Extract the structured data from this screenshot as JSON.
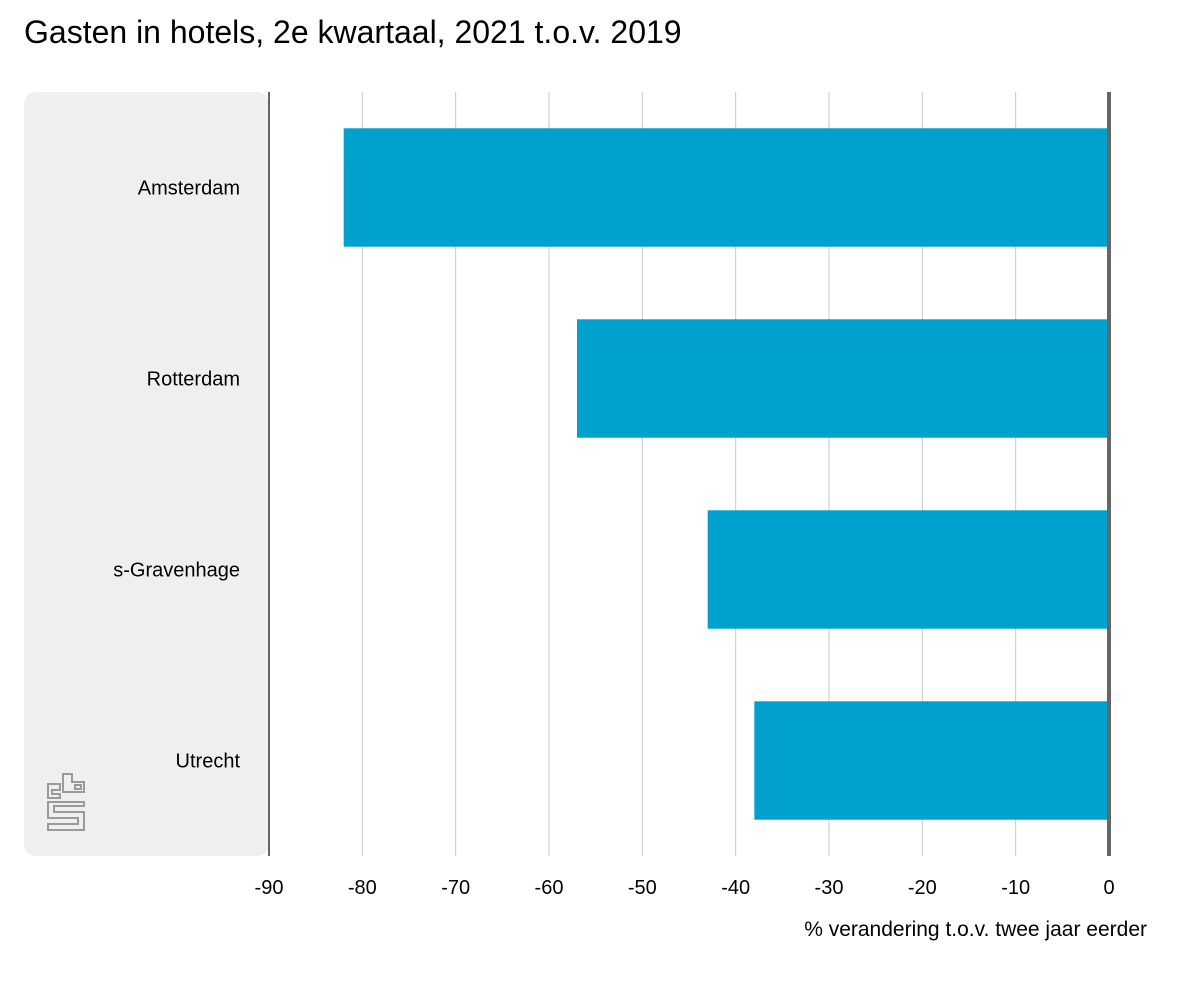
{
  "title": "Gasten in hotels, 2e kwartaal, 2021 t.o.v. 2019",
  "colors": {
    "bar": "#00a1cd",
    "panel": "#efefef",
    "grid": "#c8c8c8",
    "axis": "#666666"
  },
  "logo_icon": "cbs-logo-icon",
  "chart_data": {
    "type": "bar",
    "orientation": "horizontal",
    "title": "Gasten in hotels, 2e kwartaal, 2021 t.o.v. 2019",
    "categories": [
      "Amsterdam",
      "Rotterdam",
      "s-Gravenhage",
      "Utrecht"
    ],
    "values": [
      -82,
      -57,
      -43,
      -38
    ],
    "xlabel": "% verandering t.o.v. twee jaar eerder",
    "ylabel": "",
    "xlim": [
      -90,
      0
    ],
    "xticks": [
      -90,
      -80,
      -70,
      -60,
      -50,
      -40,
      -30,
      -20,
      -10,
      0
    ],
    "grid": true,
    "legend": "none"
  }
}
